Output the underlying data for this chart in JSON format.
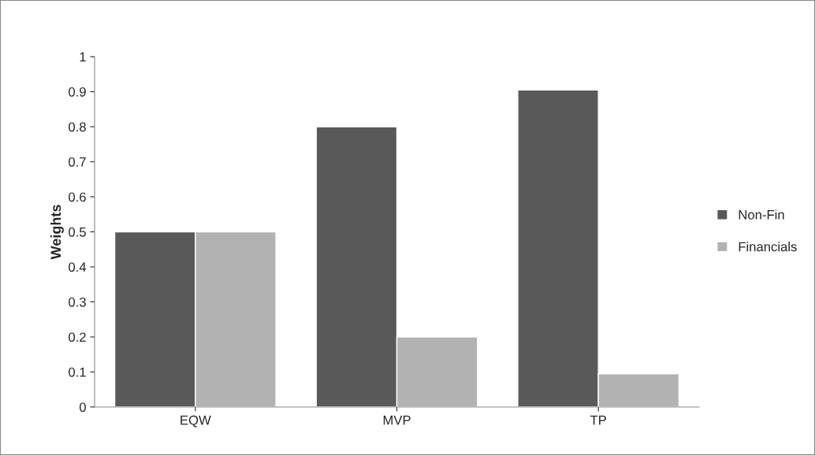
{
  "chart_data": {
    "type": "bar",
    "ylabel": "Weights",
    "categories": [
      "EQW",
      "MVP",
      "TP"
    ],
    "series": [
      {
        "name": "Non-Fin",
        "color": "#595959",
        "values": [
          0.5,
          0.8,
          0.905
        ]
      },
      {
        "name": "Financials",
        "color": "#b2b2b2",
        "values": [
          0.5,
          0.2,
          0.095
        ]
      }
    ],
    "ylim": [
      0,
      1
    ],
    "yticks": [
      0,
      0.1,
      0.2,
      0.3,
      0.4,
      0.5,
      0.6,
      0.7,
      0.8,
      0.9,
      1
    ],
    "legend": "right",
    "grid": false
  }
}
